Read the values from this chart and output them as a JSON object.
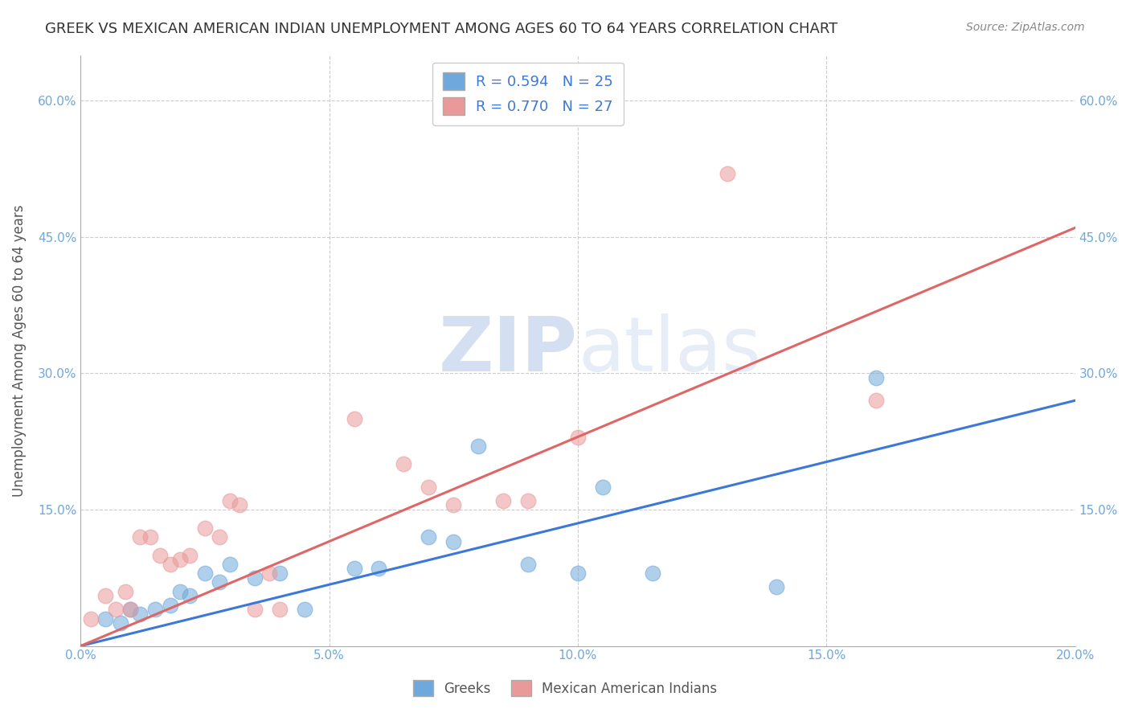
{
  "title": "GREEK VS MEXICAN AMERICAN INDIAN UNEMPLOYMENT AMONG AGES 60 TO 64 YEARS CORRELATION CHART",
  "source": "Source: ZipAtlas.com",
  "ylabel": "Unemployment Among Ages 60 to 64 years",
  "legend_greek_R": "R = 0.594",
  "legend_greek_N": "N = 25",
  "legend_mexican_R": "R = 0.770",
  "legend_mexican_N": "N = 27",
  "xlim": [
    0.0,
    0.2
  ],
  "ylim": [
    0.0,
    0.65
  ],
  "xticks": [
    0.0,
    0.05,
    0.1,
    0.15,
    0.2
  ],
  "xtick_labels": [
    "0.0%",
    "5.0%",
    "10.0%",
    "15.0%",
    "20.0%"
  ],
  "yticks": [
    0.0,
    0.15,
    0.3,
    0.45,
    0.6
  ],
  "ytick_labels": [
    "",
    "15.0%",
    "30.0%",
    "45.0%",
    "60.0%"
  ],
  "greek_color": "#6fa8dc",
  "mexican_color": "#ea9999",
  "greek_line_color": "#3c78d8",
  "mexican_line_color": "#e06666",
  "title_color": "#333333",
  "axis_color": "#6fa8dc",
  "greek_scatter": [
    [
      0.005,
      0.03
    ],
    [
      0.008,
      0.025
    ],
    [
      0.01,
      0.04
    ],
    [
      0.012,
      0.035
    ],
    [
      0.015,
      0.04
    ],
    [
      0.018,
      0.045
    ],
    [
      0.02,
      0.06
    ],
    [
      0.022,
      0.055
    ],
    [
      0.025,
      0.08
    ],
    [
      0.028,
      0.07
    ],
    [
      0.03,
      0.09
    ],
    [
      0.035,
      0.075
    ],
    [
      0.04,
      0.08
    ],
    [
      0.045,
      0.04
    ],
    [
      0.055,
      0.085
    ],
    [
      0.06,
      0.085
    ],
    [
      0.07,
      0.12
    ],
    [
      0.075,
      0.115
    ],
    [
      0.08,
      0.22
    ],
    [
      0.09,
      0.09
    ],
    [
      0.1,
      0.08
    ],
    [
      0.105,
      0.175
    ],
    [
      0.115,
      0.08
    ],
    [
      0.14,
      0.065
    ],
    [
      0.16,
      0.295
    ]
  ],
  "mexican_scatter": [
    [
      0.002,
      0.03
    ],
    [
      0.005,
      0.055
    ],
    [
      0.007,
      0.04
    ],
    [
      0.009,
      0.06
    ],
    [
      0.01,
      0.04
    ],
    [
      0.012,
      0.12
    ],
    [
      0.014,
      0.12
    ],
    [
      0.016,
      0.1
    ],
    [
      0.018,
      0.09
    ],
    [
      0.02,
      0.095
    ],
    [
      0.022,
      0.1
    ],
    [
      0.025,
      0.13
    ],
    [
      0.028,
      0.12
    ],
    [
      0.03,
      0.16
    ],
    [
      0.032,
      0.155
    ],
    [
      0.035,
      0.04
    ],
    [
      0.038,
      0.08
    ],
    [
      0.04,
      0.04
    ],
    [
      0.055,
      0.25
    ],
    [
      0.065,
      0.2
    ],
    [
      0.07,
      0.175
    ],
    [
      0.075,
      0.155
    ],
    [
      0.085,
      0.16
    ],
    [
      0.09,
      0.16
    ],
    [
      0.1,
      0.23
    ],
    [
      0.13,
      0.52
    ],
    [
      0.16,
      0.27
    ]
  ],
  "greek_trend": [
    0.0,
    0.2,
    0.0,
    0.27
  ],
  "mexican_trend": [
    0.0,
    0.2,
    0.0,
    0.46
  ],
  "background_color": "#ffffff",
  "grid_color": "#cccccc"
}
